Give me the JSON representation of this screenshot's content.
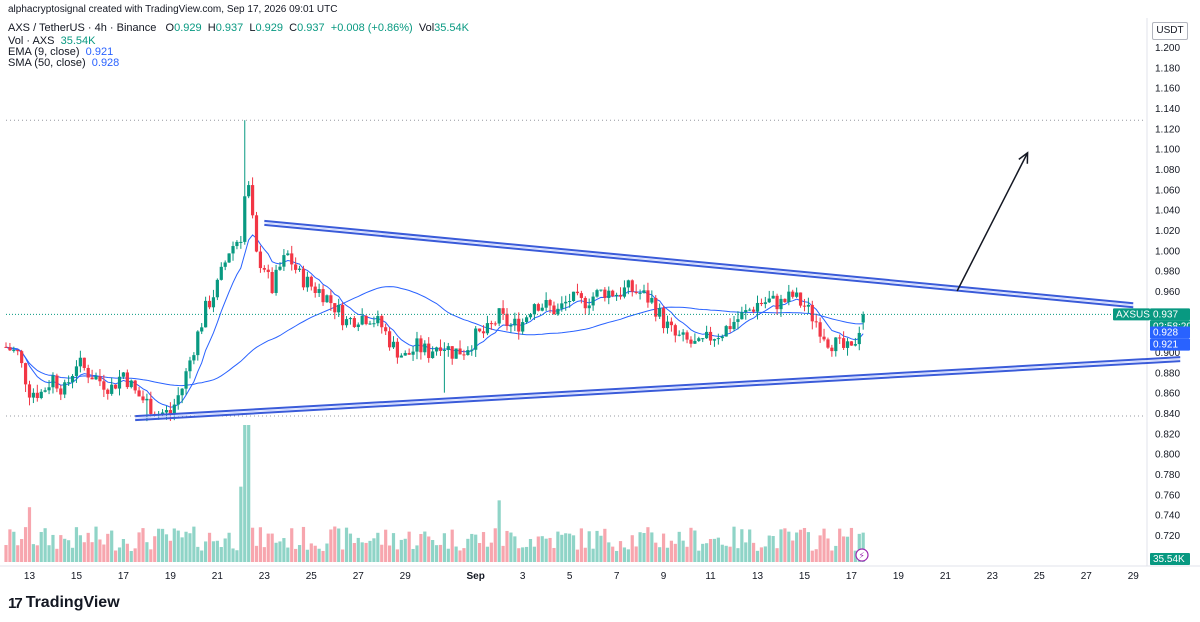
{
  "credit": "alphacryptosignal created with TradingView.com, Sep 17, 2026 09:01 UTC",
  "brand": "TradingView",
  "header": {
    "symbol": "AXS / TetherUS · 4h · Binance",
    "o_label": "O",
    "o": "0.929",
    "h_label": "H",
    "h": "0.937",
    "l_label": "L",
    "l": "0.929",
    "c_label": "C",
    "c": "0.937",
    "change": "+0.008 (+0.86%)",
    "vol_label": "Vol",
    "vol": "35.54K",
    "vol_line_label": "Vol · AXS",
    "vol_line_value": "35.54K",
    "ema_label": "EMA (9, close)",
    "ema_value": "0.921",
    "sma_label": "SMA (50, close)",
    "sma_value": "0.928"
  },
  "colors": {
    "up": "#089981",
    "down": "#f23645",
    "ema": "#2962ff",
    "sma": "#2962ff",
    "channel": "#3a5bd9",
    "volume_up": "#8fd4c7",
    "volume_down": "#f7a6ae"
  },
  "chart_data": {
    "type": "candlestick",
    "quote_unit": "USDT",
    "symbol_tag": "AXSUSDT",
    "last_price": "0.937",
    "countdown": "02:58:20",
    "sma_tag": "0.928",
    "ema_tag": "0.921",
    "volume_tag": "35.54K",
    "y_ticks": [
      "1.200",
      "1.180",
      "1.160",
      "1.140",
      "1.120",
      "1.100",
      "1.080",
      "1.060",
      "1.040",
      "1.020",
      "1.000",
      "0.980",
      "0.960",
      "0.940",
      "0.920",
      "0.900",
      "0.880",
      "0.860",
      "0.840",
      "0.820",
      "0.800",
      "0.780",
      "0.760",
      "0.740",
      "0.720"
    ],
    "ylim": [
      0.7,
      1.22
    ],
    "x_ticks": [
      "13",
      "15",
      "17",
      "19",
      "21",
      "23",
      "25",
      "27",
      "29",
      "Sep",
      "3",
      "5",
      "7",
      "9",
      "11",
      "13",
      "15",
      "17",
      "19",
      "21",
      "23",
      "25",
      "27",
      "29"
    ],
    "x_tick_days": [
      13,
      15,
      17,
      19,
      21,
      23,
      25,
      27,
      29,
      32,
      34,
      36,
      38,
      40,
      42,
      44,
      46,
      48,
      50,
      52,
      54,
      56,
      58,
      60
    ],
    "x_start_day": 12,
    "x_end_day": 60.5,
    "candles_per_day": 6,
    "last_candle_day": 48.5,
    "reference_levels": [
      1.128,
      0.837
    ],
    "close_anchors": [
      [
        12,
        0.905
      ],
      [
        12.5,
        0.898
      ],
      [
        13,
        0.862
      ],
      [
        13.5,
        0.86
      ],
      [
        14,
        0.875
      ],
      [
        14.5,
        0.862
      ],
      [
        15,
        0.89
      ],
      [
        15.5,
        0.88
      ],
      [
        16,
        0.872
      ],
      [
        16.5,
        0.865
      ],
      [
        17,
        0.88
      ],
      [
        17.5,
        0.86
      ],
      [
        18,
        0.85
      ],
      [
        18.5,
        0.84
      ],
      [
        19,
        0.84
      ],
      [
        19.5,
        0.865
      ],
      [
        20,
        0.905
      ],
      [
        20.5,
        0.942
      ],
      [
        21,
        0.965
      ],
      [
        21.5,
        1.0
      ],
      [
        22,
        1.015
      ],
      [
        22.2,
        1.06
      ],
      [
        22.4,
        1.06
      ],
      [
        22.6,
        0.995
      ],
      [
        23,
        0.985
      ],
      [
        23.3,
        0.96
      ],
      [
        23.7,
        0.985
      ],
      [
        24,
        0.995
      ],
      [
        24.5,
        0.975
      ],
      [
        25,
        0.965
      ],
      [
        25.5,
        0.958
      ],
      [
        26,
        0.945
      ],
      [
        26.5,
        0.93
      ],
      [
        27,
        0.935
      ],
      [
        27.5,
        0.935
      ],
      [
        28,
        0.925
      ],
      [
        28.5,
        0.905
      ],
      [
        29,
        0.895
      ],
      [
        29.5,
        0.905
      ],
      [
        30,
        0.9
      ],
      [
        30.5,
        0.91
      ],
      [
        31,
        0.9
      ],
      [
        31.5,
        0.902
      ],
      [
        32,
        0.915
      ],
      [
        32.5,
        0.92
      ],
      [
        33,
        0.935
      ],
      [
        33.5,
        0.925
      ],
      [
        34,
        0.93
      ],
      [
        34.5,
        0.95
      ],
      [
        35,
        0.945
      ],
      [
        35.5,
        0.94
      ],
      [
        36,
        0.952
      ],
      [
        36.5,
        0.948
      ],
      [
        37,
        0.955
      ],
      [
        37.5,
        0.96
      ],
      [
        38,
        0.958
      ],
      [
        38.5,
        0.962
      ],
      [
        39,
        0.958
      ],
      [
        39.5,
        0.95
      ],
      [
        40,
        0.93
      ],
      [
        40.5,
        0.915
      ],
      [
        41,
        0.91
      ],
      [
        41.5,
        0.905
      ],
      [
        42,
        0.915
      ],
      [
        42.5,
        0.92
      ],
      [
        43,
        0.93
      ],
      [
        43.5,
        0.938
      ],
      [
        44,
        0.948
      ],
      [
        44.5,
        0.95
      ],
      [
        45,
        0.948
      ],
      [
        45.5,
        0.955
      ],
      [
        46,
        0.945
      ],
      [
        46.5,
        0.93
      ],
      [
        47,
        0.912
      ],
      [
        47.5,
        0.905
      ],
      [
        48,
        0.9
      ],
      [
        48.5,
        0.937
      ]
    ],
    "annotations": {
      "upper_trendline": [
        [
          23,
          1.027
        ],
        [
          60,
          0.946
        ]
      ],
      "lower_trendline": [
        [
          17.5,
          0.835
        ],
        [
          62,
          0.893
        ]
      ],
      "target_arrow": [
        [
          52.5,
          0.96
        ],
        [
          55.5,
          1.096
        ]
      ]
    }
  }
}
